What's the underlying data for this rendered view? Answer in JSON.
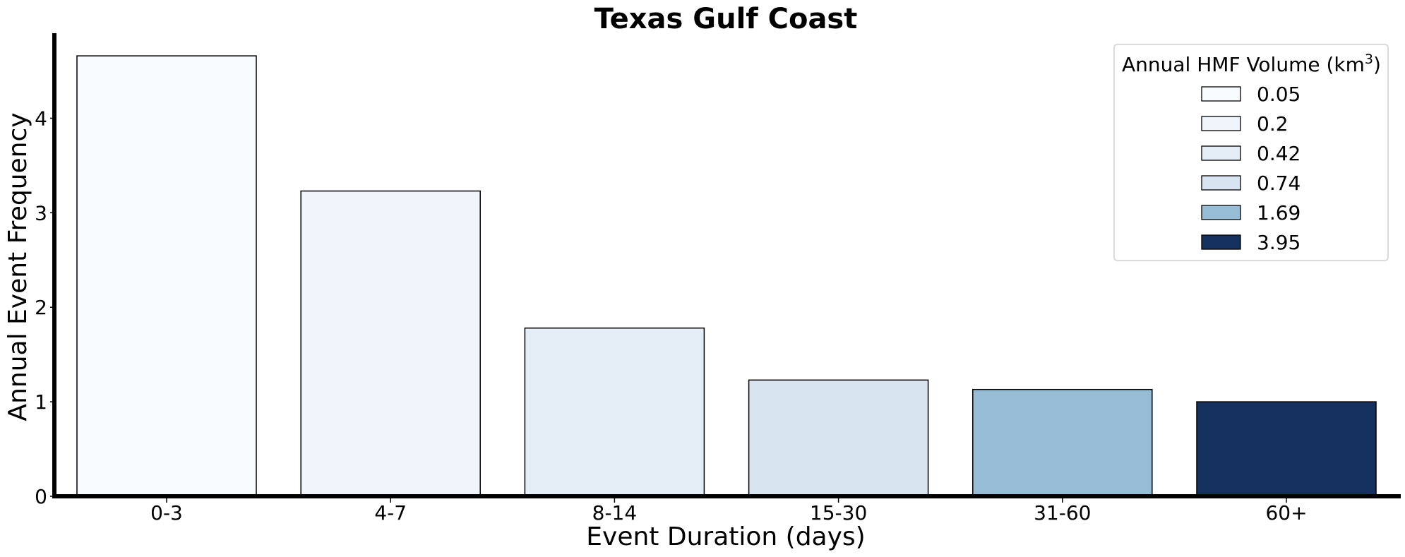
{
  "chart_data": {
    "type": "bar",
    "title": "Texas Gulf Coast",
    "xlabel": "Event Duration (days)",
    "ylabel": "Annual Event Frequency",
    "categories": [
      "0-3",
      "4-7",
      "8-14",
      "15-30",
      "31-60",
      "60+"
    ],
    "values": [
      4.66,
      3.23,
      1.78,
      1.23,
      1.13,
      1.0
    ],
    "bar_colors": [
      "#f7fbff",
      "#f0f5fb",
      "#e4edf6",
      "#d8e5f1",
      "#97bcd5",
      "#14305d"
    ],
    "ylim": [
      0,
      4.9
    ],
    "yticks": [
      0,
      1,
      2,
      3,
      4
    ],
    "grid": false,
    "legend": {
      "title": "Annual HMF Volume (km",
      "title_sup": "3",
      "title_suffix": ")",
      "placement": "top-right",
      "entries": [
        {
          "label": "0.05",
          "color": "#f7fbff"
        },
        {
          "label": "0.2",
          "color": "#f0f5fb"
        },
        {
          "label": "0.42",
          "color": "#e4edf6"
        },
        {
          "label": "0.74",
          "color": "#d8e5f1"
        },
        {
          "label": "1.69",
          "color": "#97bcd5"
        },
        {
          "label": "3.95",
          "color": "#14305d"
        }
      ]
    }
  }
}
